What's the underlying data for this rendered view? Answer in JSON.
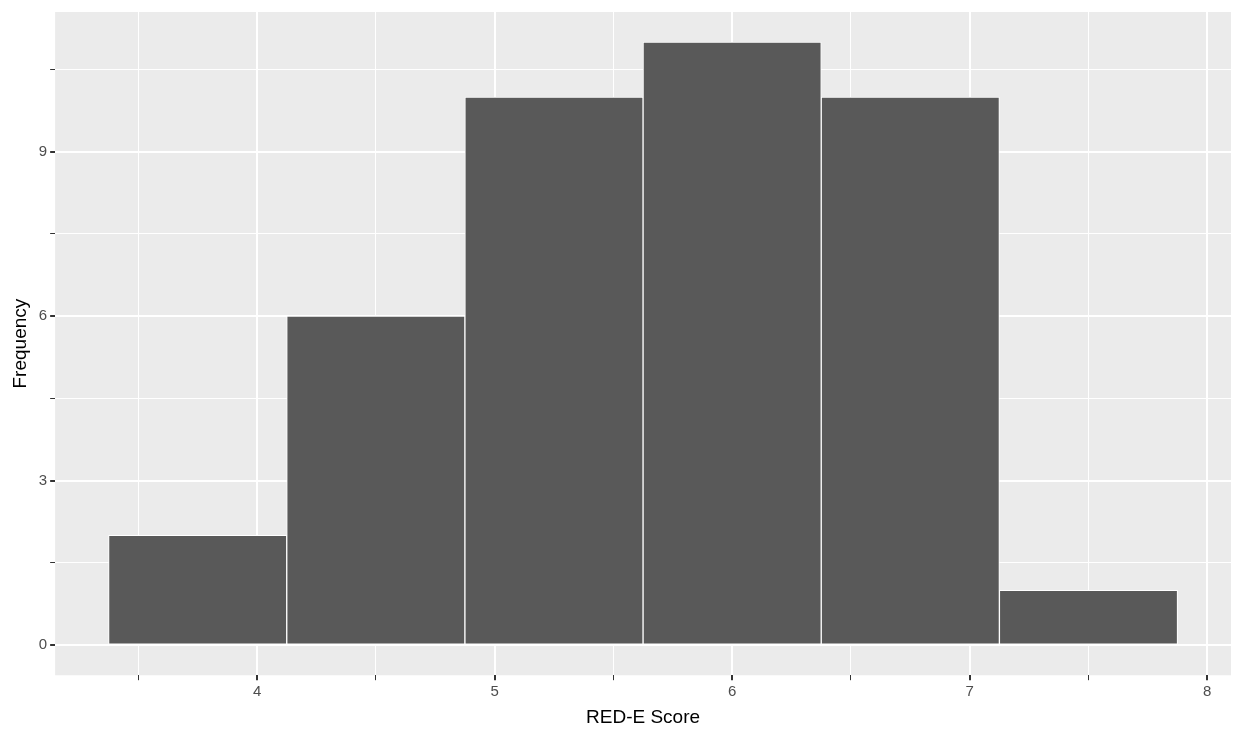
{
  "chart_data": {
    "type": "histogram",
    "xlabel": "RED-E Score",
    "ylabel": "Frequency",
    "bins": [
      3.375,
      4.125,
      4.875,
      5.625,
      6.375,
      7.125,
      7.875
    ],
    "values": [
      2,
      6,
      10,
      11,
      10,
      1
    ],
    "color": "#595959",
    "xlim": [
      3.15,
      8.1
    ],
    "xticks": [
      {
        "value": 3.5,
        "label": null
      },
      4,
      {
        "value": 4.5,
        "label": null
      },
      5,
      {
        "value": 5.5,
        "label": null
      },
      6,
      {
        "value": 6.5,
        "label": null
      },
      7,
      {
        "value": 7.5,
        "label": null
      },
      8
    ],
    "ylim": [
      -0.55,
      11.55
    ],
    "yticks": [
      0,
      {
        "value": 1.5,
        "label": null
      },
      3,
      {
        "value": 4.5,
        "label": null
      },
      6,
      {
        "value": 7.5,
        "label": null
      },
      9,
      {
        "value": 10.5,
        "label": null
      }
    ],
    "grid": true
  }
}
